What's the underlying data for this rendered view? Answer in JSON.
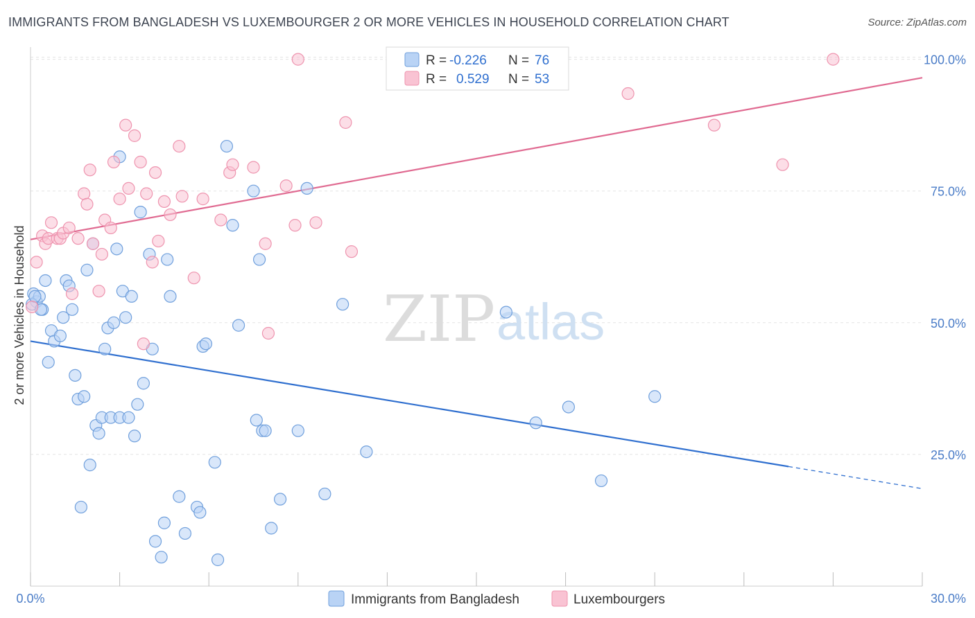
{
  "title": "IMMIGRANTS FROM BANGLADESH VS LUXEMBOURGER 2 OR MORE VEHICLES IN HOUSEHOLD CORRELATION CHART",
  "source": "Source: ZipAtlas.com",
  "watermark": {
    "zip": "ZIP",
    "atlas": "atlas"
  },
  "colors": {
    "blue_fill": "#b9d3f5",
    "blue_stroke": "#6f9fdc",
    "blue_line": "#2f6fcf",
    "pink_fill": "#f9c3d3",
    "pink_stroke": "#ee93ae",
    "pink_line": "#e06a91",
    "label_blue": "#4a7cc7",
    "grid": "#e3e3e3"
  },
  "legend": {
    "rows": [
      {
        "r_label": "R =",
        "r_value": "-0.226",
        "n_label": "N =",
        "n_value": "76"
      },
      {
        "r_label": "R =",
        "r_value": "0.529",
        "n_label": "N =",
        "n_value": "53"
      }
    ]
  },
  "chart_data": {
    "type": "scatter",
    "xlabel": "",
    "ylabel": "2 or more Vehicles in Household",
    "xlim": [
      0,
      30
    ],
    "ylim": [
      0,
      101
    ],
    "x_tick_labels": [
      "0.0%",
      "30.0%"
    ],
    "y_ticks": [
      25,
      50,
      75,
      100
    ],
    "y_tick_labels": [
      "25.0%",
      "50.0%",
      "75.0%",
      "100.0%"
    ],
    "grid": true,
    "legend_position": "bottom",
    "series": [
      {
        "name": "Immigrants from Bangladesh",
        "color": "#b9d3f5",
        "r": -0.226,
        "n": 76,
        "trend": {
          "x0": 0,
          "y0": 46.5,
          "x1": 25.5,
          "y1": 22.7,
          "dash_to_x": 30,
          "dash_to_y": 18.5
        },
        "points": [
          [
            0.1,
            55.5
          ],
          [
            0.2,
            54
          ],
          [
            0.3,
            55
          ],
          [
            0.4,
            52.5
          ],
          [
            0.5,
            58
          ],
          [
            0.6,
            42.5
          ],
          [
            0.7,
            48.5
          ],
          [
            0.8,
            46.5
          ],
          [
            1.0,
            47.5
          ],
          [
            1.1,
            51
          ],
          [
            1.2,
            58
          ],
          [
            1.3,
            57
          ],
          [
            1.4,
            52.5
          ],
          [
            1.5,
            40
          ],
          [
            1.6,
            35.5
          ],
          [
            1.7,
            15
          ],
          [
            1.9,
            60
          ],
          [
            2.0,
            23
          ],
          [
            2.2,
            30.5
          ],
          [
            2.3,
            29
          ],
          [
            2.4,
            32
          ],
          [
            2.5,
            45
          ],
          [
            2.6,
            49
          ],
          [
            2.7,
            32
          ],
          [
            2.8,
            50
          ],
          [
            2.9,
            64
          ],
          [
            3.0,
            32
          ],
          [
            3.0,
            81.5
          ],
          [
            3.1,
            56
          ],
          [
            3.2,
            51
          ],
          [
            3.3,
            32
          ],
          [
            3.4,
            55
          ],
          [
            3.5,
            28.5
          ],
          [
            3.6,
            34.5
          ],
          [
            3.7,
            71
          ],
          [
            3.8,
            38.5
          ],
          [
            4.0,
            63
          ],
          [
            4.1,
            45
          ],
          [
            4.2,
            8.5
          ],
          [
            4.4,
            5.5
          ],
          [
            4.5,
            12
          ],
          [
            4.6,
            62
          ],
          [
            4.7,
            55
          ],
          [
            5.0,
            17
          ],
          [
            5.2,
            10
          ],
          [
            5.6,
            15
          ],
          [
            5.7,
            14
          ],
          [
            5.8,
            45.5
          ],
          [
            5.9,
            46
          ],
          [
            6.2,
            23.5
          ],
          [
            6.3,
            5
          ],
          [
            6.6,
            83.5
          ],
          [
            6.8,
            68.5
          ],
          [
            7.0,
            49.5
          ],
          [
            7.5,
            75
          ],
          [
            7.6,
            31.5
          ],
          [
            7.7,
            62
          ],
          [
            7.8,
            29.5
          ],
          [
            7.9,
            29.5
          ],
          [
            8.1,
            11
          ],
          [
            8.4,
            16.5
          ],
          [
            9.0,
            29.5
          ],
          [
            9.3,
            75.5
          ],
          [
            9.9,
            17.5
          ],
          [
            10.5,
            53.5
          ],
          [
            11.3,
            25.5
          ],
          [
            16.0,
            52
          ],
          [
            17.0,
            31
          ],
          [
            18.1,
            34
          ],
          [
            19.2,
            20
          ],
          [
            21.0,
            36
          ],
          [
            0.05,
            53.5
          ],
          [
            0.15,
            55
          ],
          [
            0.35,
            52.5
          ],
          [
            2.1,
            65
          ],
          [
            1.8,
            36
          ]
        ]
      },
      {
        "name": "Luxembourgers",
        "color": "#f9c3d3",
        "r": 0.529,
        "n": 53,
        "trend": {
          "x0": 0,
          "y0": 65.8,
          "x1": 30,
          "y1": 96.5
        },
        "points": [
          [
            0.05,
            53
          ],
          [
            0.2,
            61.5
          ],
          [
            0.4,
            66.5
          ],
          [
            0.5,
            65
          ],
          [
            0.6,
            66
          ],
          [
            0.7,
            69
          ],
          [
            0.9,
            66
          ],
          [
            1.0,
            66
          ],
          [
            1.1,
            67
          ],
          [
            1.3,
            68
          ],
          [
            1.4,
            55.5
          ],
          [
            1.6,
            66
          ],
          [
            1.8,
            74.5
          ],
          [
            1.9,
            72.5
          ],
          [
            2.0,
            79
          ],
          [
            2.1,
            65
          ],
          [
            2.3,
            56
          ],
          [
            2.4,
            63
          ],
          [
            2.5,
            69.5
          ],
          [
            2.7,
            68
          ],
          [
            2.8,
            80.5
          ],
          [
            3.0,
            73.5
          ],
          [
            3.2,
            87.5
          ],
          [
            3.3,
            75.5
          ],
          [
            3.5,
            85.5
          ],
          [
            3.7,
            80.5
          ],
          [
            3.8,
            46
          ],
          [
            3.9,
            74.5
          ],
          [
            4.1,
            61.5
          ],
          [
            4.2,
            78.5
          ],
          [
            4.3,
            65.5
          ],
          [
            4.5,
            73
          ],
          [
            4.7,
            70.5
          ],
          [
            5.0,
            83.5
          ],
          [
            5.1,
            74
          ],
          [
            5.5,
            58.5
          ],
          [
            5.8,
            73.5
          ],
          [
            6.4,
            69.5
          ],
          [
            6.7,
            78.5
          ],
          [
            6.8,
            80
          ],
          [
            7.5,
            79.5
          ],
          [
            7.9,
            65
          ],
          [
            8.0,
            48
          ],
          [
            8.6,
            76
          ],
          [
            8.9,
            68.5
          ],
          [
            9.0,
            100
          ],
          [
            9.6,
            69
          ],
          [
            10.6,
            88
          ],
          [
            10.8,
            63.5
          ],
          [
            20.1,
            93.5
          ],
          [
            23.0,
            87.5
          ],
          [
            25.3,
            80
          ],
          [
            27.0,
            100
          ]
        ]
      }
    ]
  }
}
